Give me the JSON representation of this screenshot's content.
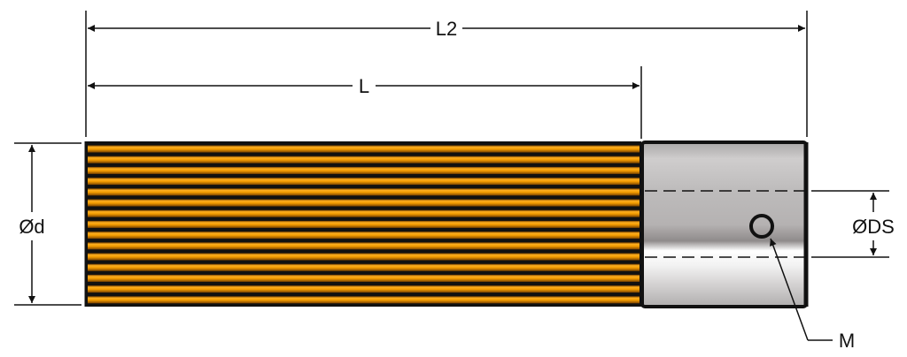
{
  "labels": {
    "overall_length": "L2",
    "toothed_length": "L",
    "outer_diameter": "Ød",
    "shaft_diameter": "ØDS",
    "set_screw": "M"
  },
  "colors": {
    "teeth": "#f29a00",
    "teeth_dark": "#8a4f00",
    "outline": "#111111",
    "hub": "#c4c2c2"
  }
}
